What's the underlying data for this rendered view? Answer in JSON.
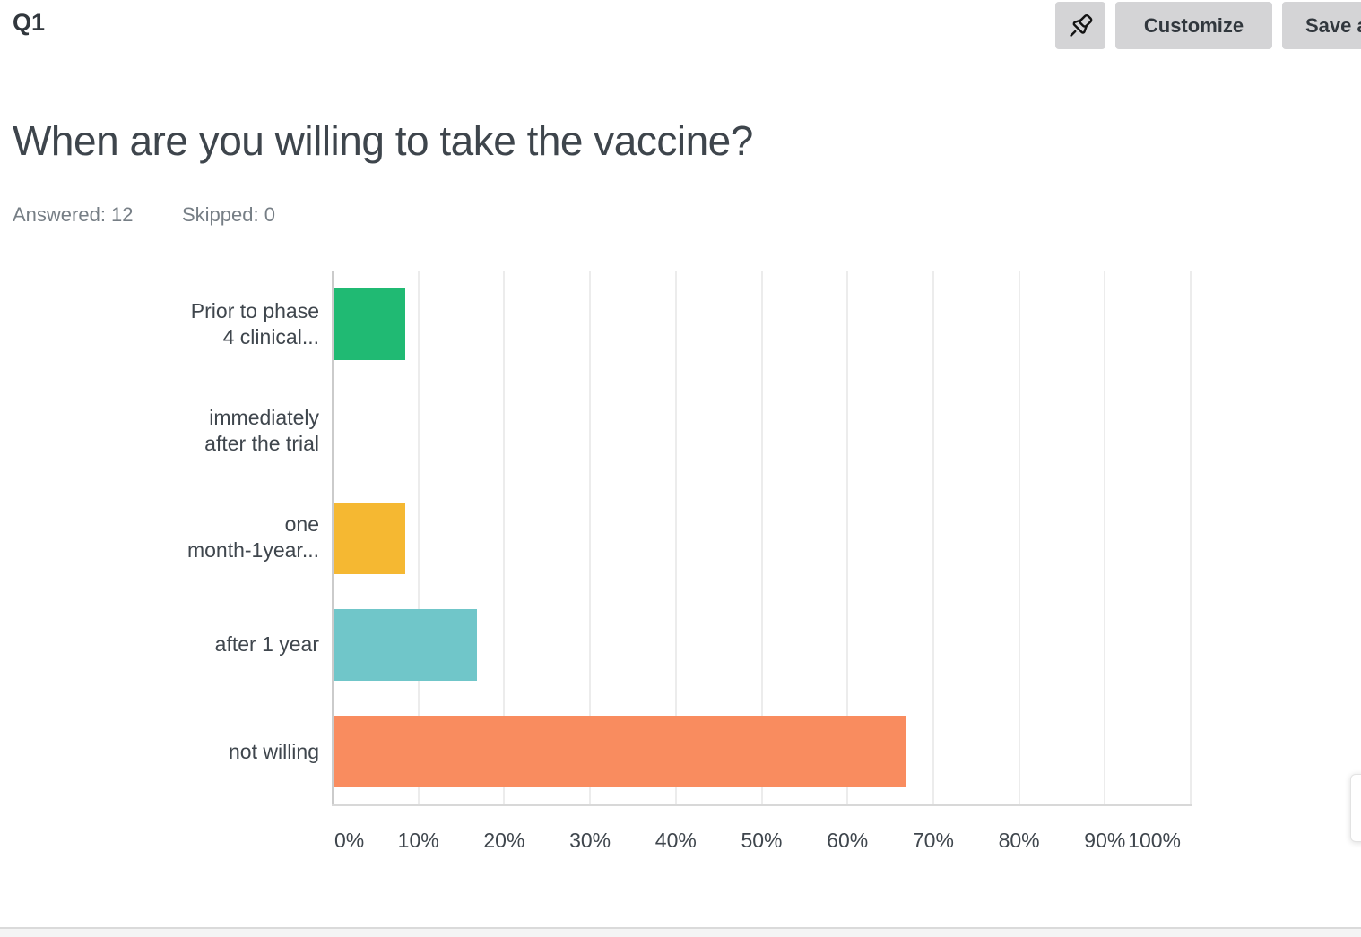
{
  "header": {
    "question_number": "Q1",
    "customize_label": "Customize",
    "save_label": "Save as"
  },
  "question": {
    "title": "When are you willing to take the vaccine?",
    "answered": "Answered: 12",
    "skipped": "Skipped: 0"
  },
  "chart_data": {
    "type": "bar",
    "orientation": "horizontal",
    "title": "",
    "xlabel": "",
    "ylabel": "",
    "xlim": [
      0,
      100
    ],
    "grid": "vertical",
    "x_ticks": [
      "0%",
      "10%",
      "20%",
      "30%",
      "40%",
      "50%",
      "60%",
      "70%",
      "80%",
      "90%",
      "100%"
    ],
    "categories": [
      {
        "label": "Prior to phase 4 clinical...",
        "lines": [
          "Prior to phase",
          "4 clinical..."
        ]
      },
      {
        "label": "immediately after the trial",
        "lines": [
          "immediately",
          "after the trial"
        ]
      },
      {
        "label": "one month-1year...",
        "lines": [
          "one",
          "month-1year..."
        ]
      },
      {
        "label": "after 1 year",
        "lines": [
          "after 1 year"
        ]
      },
      {
        "label": "not willing",
        "lines": [
          "not willing"
        ]
      }
    ],
    "values": [
      8.33,
      0,
      8.33,
      16.67,
      66.67
    ],
    "colors": [
      "#20ba73",
      "",
      "#f5b832",
      "#70c6c9",
      "#f98c5f"
    ]
  },
  "colors": {
    "accent_green": "#20ba73",
    "accent_yellow": "#f5b832",
    "accent_teal": "#70c6c9",
    "accent_orange": "#f98c5f",
    "button_bg": "#d4d4d6",
    "text_dark": "#31373d",
    "text_gray": "#767e85"
  }
}
